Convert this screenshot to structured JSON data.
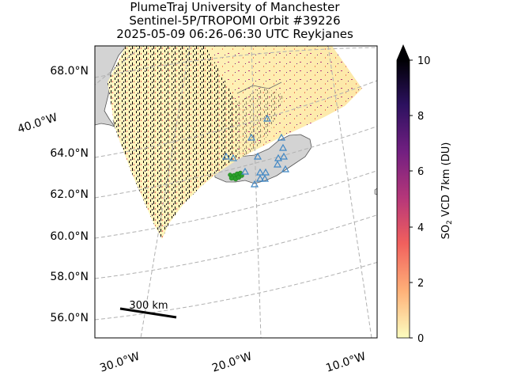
{
  "title": {
    "line1": "PlumeTraj    University of Manchester",
    "line2": "Sentinel-5P/TROPOMI Orbit #39226",
    "line3": "2025-05-09   06:26-06:30 UTC   Reykjanes"
  },
  "scale_bar_label": "300 km",
  "colorbar": {
    "label_prefix": "SO",
    "label_sub": "2",
    "label_suffix": " VCD 7km (DU)",
    "ticks": [
      "0",
      "2",
      "4",
      "6",
      "8",
      "10"
    ],
    "min": 0,
    "max": 10,
    "extend": "max",
    "colormap": "magma_r",
    "colors": [
      "#fcfdbf",
      "#feb078",
      "#f1605d",
      "#b73779",
      "#721f81",
      "#2c115f",
      "#000004"
    ]
  },
  "map_colors": {
    "land": "#d3d3d3",
    "grid": "#b0b0b0"
  },
  "chart_data": {
    "type": "map",
    "projection": "lambert-conformal",
    "lat_labels": [
      "68.0°N",
      "64.0°N",
      "62.0°N",
      "60.0°N",
      "58.0°N",
      "56.0°N"
    ],
    "lon_labels": [
      "40.0°W",
      "30.0°W",
      "20.0°W",
      "10.0°W"
    ],
    "gridlines": true,
    "volcano_markers": {
      "symbol": "open triangle",
      "color": "#3f86c4",
      "points": [
        {
          "lon": -21.7,
          "lat": 63.9
        },
        {
          "lon": -20.6,
          "lat": 63.65
        },
        {
          "lon": -19.6,
          "lat": 63.6
        },
        {
          "lon": -19.05,
          "lat": 63.63
        },
        {
          "lon": -19.2,
          "lat": 63.95
        },
        {
          "lon": -18.6,
          "lat": 64.0
        },
        {
          "lon": -17.3,
          "lat": 64.42
        },
        {
          "lon": -16.7,
          "lat": 64.0
        },
        {
          "lon": -17.1,
          "lat": 64.6
        },
        {
          "lon": -16.0,
          "lat": 64.1
        },
        {
          "lon": -16.3,
          "lat": 64.7
        },
        {
          "lon": -16.9,
          "lat": 65.05
        },
        {
          "lon": -17.3,
          "lat": 65.3
        },
        {
          "lon": -16.0,
          "lat": 65.8
        },
        {
          "lon": -18.2,
          "lat": 64.8
        },
        {
          "lon": -20.0,
          "lat": 64.4
        },
        {
          "lon": -21.3,
          "lat": 64.3
        }
      ]
    },
    "trajectory_points": {
      "color": "#2ca02c",
      "points": [
        {
          "lon": -22.3,
          "lat": 63.85
        },
        {
          "lon": -22.1,
          "lat": 63.87
        },
        {
          "lon": -21.9,
          "lat": 63.9
        },
        {
          "lon": -21.7,
          "lat": 63.92
        },
        {
          "lon": -22.2,
          "lat": 63.93
        },
        {
          "lon": -21.8,
          "lat": 63.86
        }
      ]
    }
  }
}
